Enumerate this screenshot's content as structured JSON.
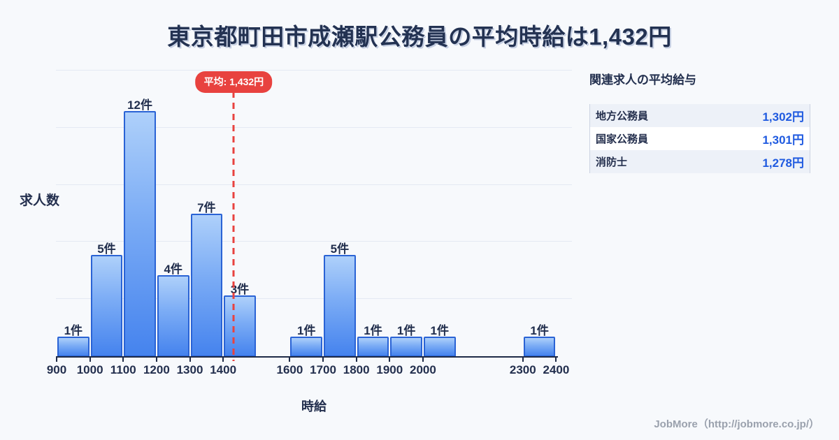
{
  "title": "東京都町田市成瀬駅公務員の平均時給は1,432円",
  "chart_data": {
    "type": "bar",
    "title": "東京都町田市成瀬駅公務員の平均時給は1,432円",
    "xlabel": "時給",
    "ylabel": "求人数",
    "grid": true,
    "x_range": [
      900,
      2450
    ],
    "ylim": [
      0,
      14
    ],
    "x_ticks": [
      900,
      1000,
      1100,
      1200,
      1300,
      1400,
      1600,
      1700,
      1800,
      1900,
      2000,
      2300,
      2400
    ],
    "bins": [
      {
        "x0": 900,
        "x1": 1000,
        "count": 1,
        "label": "1件"
      },
      {
        "x0": 1000,
        "x1": 1100,
        "count": 5,
        "label": "5件"
      },
      {
        "x0": 1100,
        "x1": 1200,
        "count": 12,
        "label": "12件"
      },
      {
        "x0": 1200,
        "x1": 1300,
        "count": 4,
        "label": "4件"
      },
      {
        "x0": 1300,
        "x1": 1400,
        "count": 7,
        "label": "7件"
      },
      {
        "x0": 1400,
        "x1": 1500,
        "count": 3,
        "label": "3件"
      },
      {
        "x0": 1600,
        "x1": 1700,
        "count": 1,
        "label": "1件"
      },
      {
        "x0": 1700,
        "x1": 1800,
        "count": 5,
        "label": "5件"
      },
      {
        "x0": 1800,
        "x1": 1900,
        "count": 1,
        "label": "1件"
      },
      {
        "x0": 1900,
        "x1": 2000,
        "count": 1,
        "label": "1件"
      },
      {
        "x0": 2000,
        "x1": 2100,
        "count": 1,
        "label": "1件"
      },
      {
        "x0": 2300,
        "x1": 2400,
        "count": 1,
        "label": "1件"
      }
    ],
    "average": 1432,
    "average_label": "平均: 1,432円"
  },
  "panel": {
    "title": "関連求人の平均給与",
    "rows": [
      {
        "label": "地方公務員",
        "value": "1,302円"
      },
      {
        "label": "国家公務員",
        "value": "1,301円"
      },
      {
        "label": "消防士",
        "value": "1,278円"
      }
    ]
  },
  "footer": {
    "credit": "JobMore（http://jobmore.co.jp/）"
  },
  "colors": {
    "background": "#f7f9fc",
    "title_text": "#233252",
    "bar_fill_top": "#aed0fa",
    "bar_fill_bottom": "#4583ee",
    "bar_border": "#2a63d5",
    "axis": "#1f2b47",
    "gridline": "#e4e9f3",
    "average_red": "#e8423f",
    "value_blue": "#1f5ae0",
    "credit_gray": "#9aa1ad"
  }
}
